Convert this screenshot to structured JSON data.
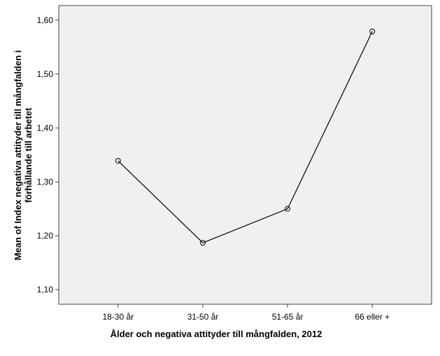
{
  "chart_data": {
    "type": "line",
    "ylabel": [
      "Mean of Index negativa attityder till mångfalden i",
      "förhållande till arbetet"
    ],
    "xlabel": "Ålder och negativa attityder till mångfalden, 2012",
    "categories": [
      "18-30 år",
      "31-50 år",
      "51-65 år",
      "66 eller +"
    ],
    "values": [
      1.339,
      1.187,
      1.25,
      1.579
    ],
    "color": "#000000",
    "ylim": [
      1.073,
      1.627
    ],
    "yticks": [
      {
        "value": 1.1,
        "label": "1,10"
      },
      {
        "value": 1.2,
        "label": "1,20"
      },
      {
        "value": 1.3,
        "label": "1,30"
      },
      {
        "value": 1.4,
        "label": "1,40"
      },
      {
        "value": 1.5,
        "label": "1,50"
      },
      {
        "value": 1.6,
        "label": "1,60"
      }
    ]
  }
}
